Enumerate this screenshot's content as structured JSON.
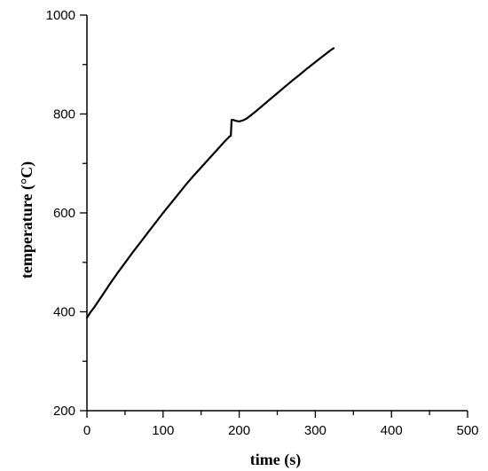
{
  "chart_data": {
    "type": "line",
    "title": "",
    "xlabel": "time (s)",
    "ylabel": "temperature (°C)",
    "xlim": [
      0,
      500
    ],
    "ylim": [
      200,
      1000
    ],
    "x_ticks": [
      0,
      100,
      200,
      300,
      400,
      500
    ],
    "y_ticks": [
      200,
      400,
      600,
      800,
      1000
    ],
    "x_tick_labels": [
      "0",
      "100",
      "200",
      "300",
      "400",
      "500"
    ],
    "y_tick_labels": [
      "200",
      "400",
      "600",
      "800",
      "1000"
    ],
    "grid": false,
    "legend": "none",
    "series": [
      {
        "color": "#000000",
        "x": [
          0,
          5,
          10,
          20,
          30,
          40,
          50,
          60,
          70,
          80,
          90,
          100,
          110,
          120,
          130,
          140,
          150,
          160,
          170,
          180,
          187,
          189,
          190,
          192,
          196,
          200,
          205,
          210,
          220,
          230,
          240,
          250,
          260,
          270,
          280,
          290,
          300,
          310,
          320,
          324
        ],
        "y": [
          388,
          400,
          410,
          433,
          456,
          478,
          499,
          520,
          540,
          560,
          580,
          600,
          619,
          638,
          657,
          675,
          692,
          709,
          726,
          743,
          754,
          756,
          788,
          788,
          786,
          785,
          787,
          791,
          803,
          816,
          829,
          842,
          855,
          868,
          880,
          893,
          905,
          917,
          929,
          933
        ]
      }
    ]
  }
}
